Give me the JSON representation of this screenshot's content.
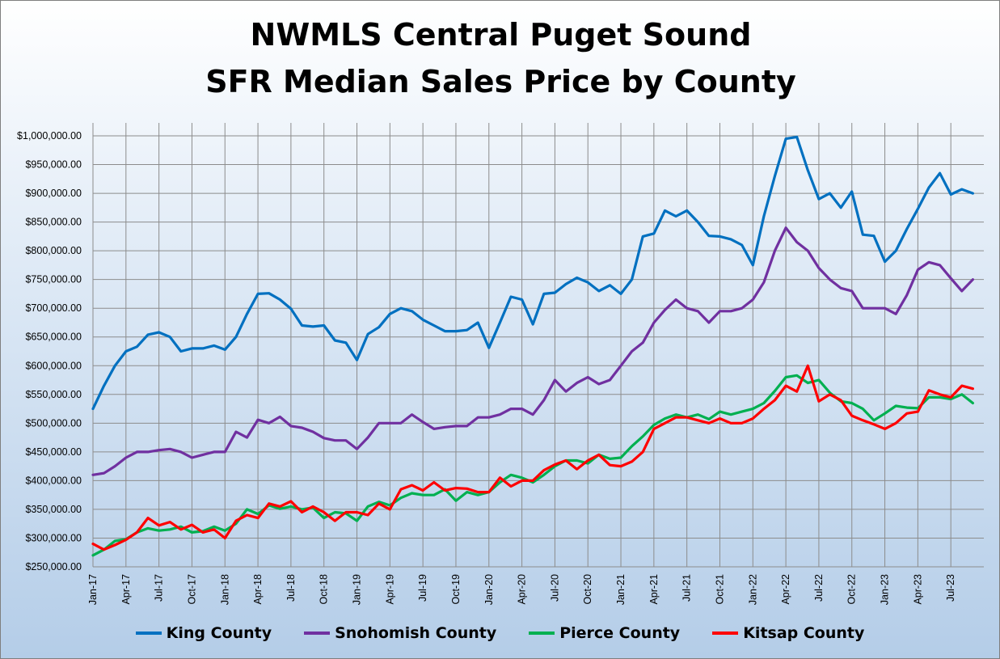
{
  "chart_data": {
    "type": "line",
    "title": "NWMLS Central Puget Sound",
    "subtitle": "SFR Median Sales Price by County",
    "ylim": [
      250000,
      1000000
    ],
    "y_ticks": [
      "$250,000.00",
      "$300,000.00",
      "$350,000.00",
      "$400,000.00",
      "$450,000.00",
      "$500,000.00",
      "$550,000.00",
      "$600,000.00",
      "$650,000.00",
      "$700,000.00",
      "$750,000.00",
      "$800,000.00",
      "$850,000.00",
      "$900,000.00",
      "$950,000.00",
      "$1,000,000.00"
    ],
    "x_tick_labels": [
      "Jan-17",
      "Apr-17",
      "Jul-17",
      "Oct-17",
      "Jan-18",
      "Apr-18",
      "Jul-18",
      "Oct-18",
      "Jan-19",
      "Apr-19",
      "Jul-19",
      "Oct-19",
      "Jan-20",
      "Apr-20",
      "Jul-20",
      "Oct-20",
      "Jan-21",
      "Apr-21",
      "Jul-21",
      "Oct-21",
      "Jan-22",
      "Apr-22",
      "Jul-22",
      "Oct-22",
      "Jan-23",
      "Apr-23",
      "Jul-23"
    ],
    "x": [
      "2017-01",
      "2017-02",
      "2017-03",
      "2017-04",
      "2017-05",
      "2017-06",
      "2017-07",
      "2017-08",
      "2017-09",
      "2017-10",
      "2017-11",
      "2017-12",
      "2018-01",
      "2018-02",
      "2018-03",
      "2018-04",
      "2018-05",
      "2018-06",
      "2018-07",
      "2018-08",
      "2018-09",
      "2018-10",
      "2018-11",
      "2018-12",
      "2019-01",
      "2019-02",
      "2019-03",
      "2019-04",
      "2019-05",
      "2019-06",
      "2019-07",
      "2019-08",
      "2019-09",
      "2019-10",
      "2019-11",
      "2019-12",
      "2020-01",
      "2020-02",
      "2020-03",
      "2020-04",
      "2020-05",
      "2020-06",
      "2020-07",
      "2020-08",
      "2020-09",
      "2020-10",
      "2020-11",
      "2020-12",
      "2021-01",
      "2021-02",
      "2021-03",
      "2021-04",
      "2021-05",
      "2021-06",
      "2021-07",
      "2021-08",
      "2021-09",
      "2021-10",
      "2021-11",
      "2021-12",
      "2022-01",
      "2022-02",
      "2022-03",
      "2022-04",
      "2022-05",
      "2022-06",
      "2022-07",
      "2022-08",
      "2022-09",
      "2022-10",
      "2022-11",
      "2022-12",
      "2023-01",
      "2023-02",
      "2023-03",
      "2023-04",
      "2023-05",
      "2023-06",
      "2023-07",
      "2023-08",
      "2023-09"
    ],
    "grid": true,
    "legend_position": "bottom",
    "series": [
      {
        "name": "King County",
        "color": "#0070c0",
        "values": [
          525000,
          565000,
          600000,
          625000,
          633000,
          654000,
          658000,
          650000,
          625000,
          630000,
          630000,
          635000,
          628000,
          650000,
          690000,
          725000,
          726000,
          715000,
          699000,
          670000,
          668000,
          670000,
          644000,
          640000,
          610000,
          655000,
          667000,
          690000,
          700000,
          695000,
          680000,
          670000,
          660000,
          660000,
          662000,
          675000,
          631000,
          675000,
          720000,
          715000,
          672000,
          725000,
          727000,
          742000,
          753000,
          745000,
          730000,
          740000,
          725000,
          750000,
          825000,
          830000,
          870000,
          860000,
          870000,
          850000,
          826000,
          825000,
          820000,
          810000,
          775000,
          860000,
          930000,
          995000,
          998000,
          940000,
          890000,
          900000,
          875000,
          903000,
          828000,
          826000,
          781000,
          800000,
          838000,
          873000,
          910000,
          935000,
          898000,
          907000,
          900000
        ]
      },
      {
        "name": "Snohomish County",
        "color": "#7030a0",
        "values": [
          410000,
          413000,
          425000,
          440000,
          450000,
          450000,
          453000,
          455000,
          450000,
          440000,
          445000,
          450000,
          450000,
          485000,
          475000,
          506000,
          500000,
          511000,
          495000,
          492000,
          485000,
          474000,
          470000,
          470000,
          455000,
          475000,
          500000,
          500000,
          500000,
          515000,
          502000,
          490000,
          493000,
          495000,
          495000,
          510000,
          510000,
          515000,
          525000,
          525000,
          515000,
          540000,
          575000,
          555000,
          570000,
          580000,
          568000,
          575000,
          600000,
          625000,
          640000,
          675000,
          697000,
          715000,
          700000,
          695000,
          675000,
          695000,
          695000,
          700000,
          715000,
          745000,
          800000,
          840000,
          815000,
          800000,
          770000,
          750000,
          735000,
          730000,
          700000,
          700000,
          700000,
          690000,
          723000,
          767000,
          780000,
          775000,
          752000,
          730000,
          750000
        ]
      },
      {
        "name": "Pierce County",
        "color": "#00b050",
        "values": [
          270000,
          280000,
          295000,
          298000,
          310000,
          317000,
          313000,
          315000,
          320000,
          310000,
          312000,
          320000,
          313000,
          325000,
          350000,
          342000,
          357000,
          351000,
          355000,
          350000,
          353000,
          335000,
          345000,
          343000,
          330000,
          355000,
          363000,
          357000,
          370000,
          378000,
          375000,
          375000,
          385000,
          365000,
          380000,
          375000,
          380000,
          397000,
          410000,
          405000,
          397000,
          410000,
          425000,
          435000,
          435000,
          430000,
          445000,
          438000,
          440000,
          460000,
          477000,
          497000,
          508000,
          515000,
          510000,
          515000,
          507000,
          520000,
          515000,
          520000,
          525000,
          535000,
          556000,
          580000,
          583000,
          570000,
          575000,
          553000,
          538000,
          535000,
          525000,
          505000,
          517000,
          530000,
          527000,
          526000,
          545000,
          545000,
          542000,
          550000,
          535000
        ]
      },
      {
        "name": "Kitsap County",
        "color": "#ff0000",
        "values": [
          290000,
          280000,
          288000,
          297000,
          310000,
          335000,
          322000,
          328000,
          315000,
          323000,
          310000,
          315000,
          300000,
          330000,
          340000,
          335000,
          360000,
          355000,
          364000,
          345000,
          355000,
          345000,
          330000,
          345000,
          345000,
          340000,
          360000,
          350000,
          385000,
          392000,
          383000,
          397000,
          383000,
          387000,
          386000,
          380000,
          380000,
          405000,
          390000,
          400000,
          400000,
          418000,
          428000,
          435000,
          420000,
          435000,
          445000,
          427000,
          425000,
          433000,
          450000,
          490000,
          500000,
          510000,
          510000,
          505000,
          500000,
          508000,
          500000,
          500000,
          508000,
          525000,
          540000,
          565000,
          555000,
          600000,
          538000,
          550000,
          540000,
          513000,
          505000,
          498000,
          490000,
          500000,
          517000,
          520000,
          557000,
          550000,
          545000,
          565000,
          560000
        ]
      }
    ]
  }
}
